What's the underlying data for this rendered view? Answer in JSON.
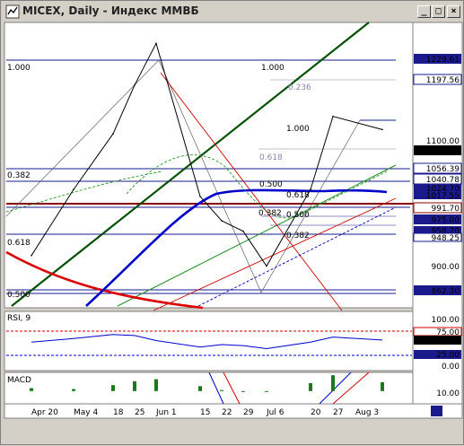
{
  "window": {
    "title": "MICEX, Daily - Индекс ММВБ",
    "controls": [
      "_",
      "□",
      "×"
    ]
  },
  "colors": {
    "background": "#ffffff",
    "price_line": "#000000",
    "fib_line": "#1a1a8c",
    "ma_blue": "#0000cc",
    "ma_red": "#dd0000",
    "trend_green": "#006000",
    "grid_panel": "#d4d0c8"
  },
  "price_axis": {
    "ticks": [
      "1229.61",
      "1197.56",
      "1100.00",
      "1086.41",
      "1056.39",
      "1040.78",
      "1024.70",
      "1017.55",
      "991.70",
      "975.00",
      "958.70",
      "948.25",
      "900.00",
      "862.30"
    ]
  },
  "fib_labels": {
    "left": [
      "1.000",
      "0.382",
      "0.618",
      "0.500"
    ],
    "middle": [
      "1.000",
      "0.236",
      "0.618",
      "0.500",
      "0.382",
      "0.618",
      "0.500",
      "0.382"
    ],
    "right": [
      "1.000"
    ]
  },
  "rsi": {
    "title": "RSI, 9",
    "ticks": [
      "100.00",
      "75.00",
      "59.08",
      "25.00",
      "0.00"
    ]
  },
  "macd": {
    "title": "MACD",
    "ticks": [
      "10.00",
      "0.00",
      "-10.00"
    ]
  },
  "date_axis": {
    "labels": [
      "Apr 20",
      "May 4",
      "18",
      "25",
      "Jun 1",
      "15",
      "22",
      "29",
      "Jul 6",
      "20",
      "27",
      "Aug 3"
    ]
  },
  "chart_data": [
    {
      "type": "line",
      "title": "MICEX, Daily",
      "x": [
        "Apr 20",
        "May 4",
        "18",
        "25",
        "Jun 1",
        "15",
        "22",
        "29",
        "Jul 6",
        "20",
        "27",
        "Aug 3"
      ],
      "series": [
        {
          "name": "MICEX",
          "values": [
            905,
            1000,
            1080,
            1150,
            1210,
            990,
            955,
            940,
            890,
            1000,
            1105,
            1086
          ]
        }
      ],
      "ylim": [
        830,
        1240
      ]
    },
    {
      "type": "line",
      "title": "RSI, 9",
      "ylim": [
        0,
        100
      ],
      "series": [
        {
          "name": "RSI",
          "values": [
            55,
            62,
            70,
            68,
            58,
            45,
            50,
            48,
            42,
            55,
            65,
            59.08
          ]
        }
      ]
    },
    {
      "type": "bar",
      "title": "MACD",
      "ylim": [
        -12,
        18
      ],
      "categories": [
        "Apr 20",
        "May 4",
        "18",
        "25",
        "Jun 1",
        "15",
        "22",
        "29",
        "Jul 6",
        "20",
        "27",
        "Aug 3"
      ],
      "values": [
        3,
        2,
        6,
        10,
        12,
        5,
        1,
        0,
        0,
        8,
        16,
        9
      ]
    }
  ]
}
